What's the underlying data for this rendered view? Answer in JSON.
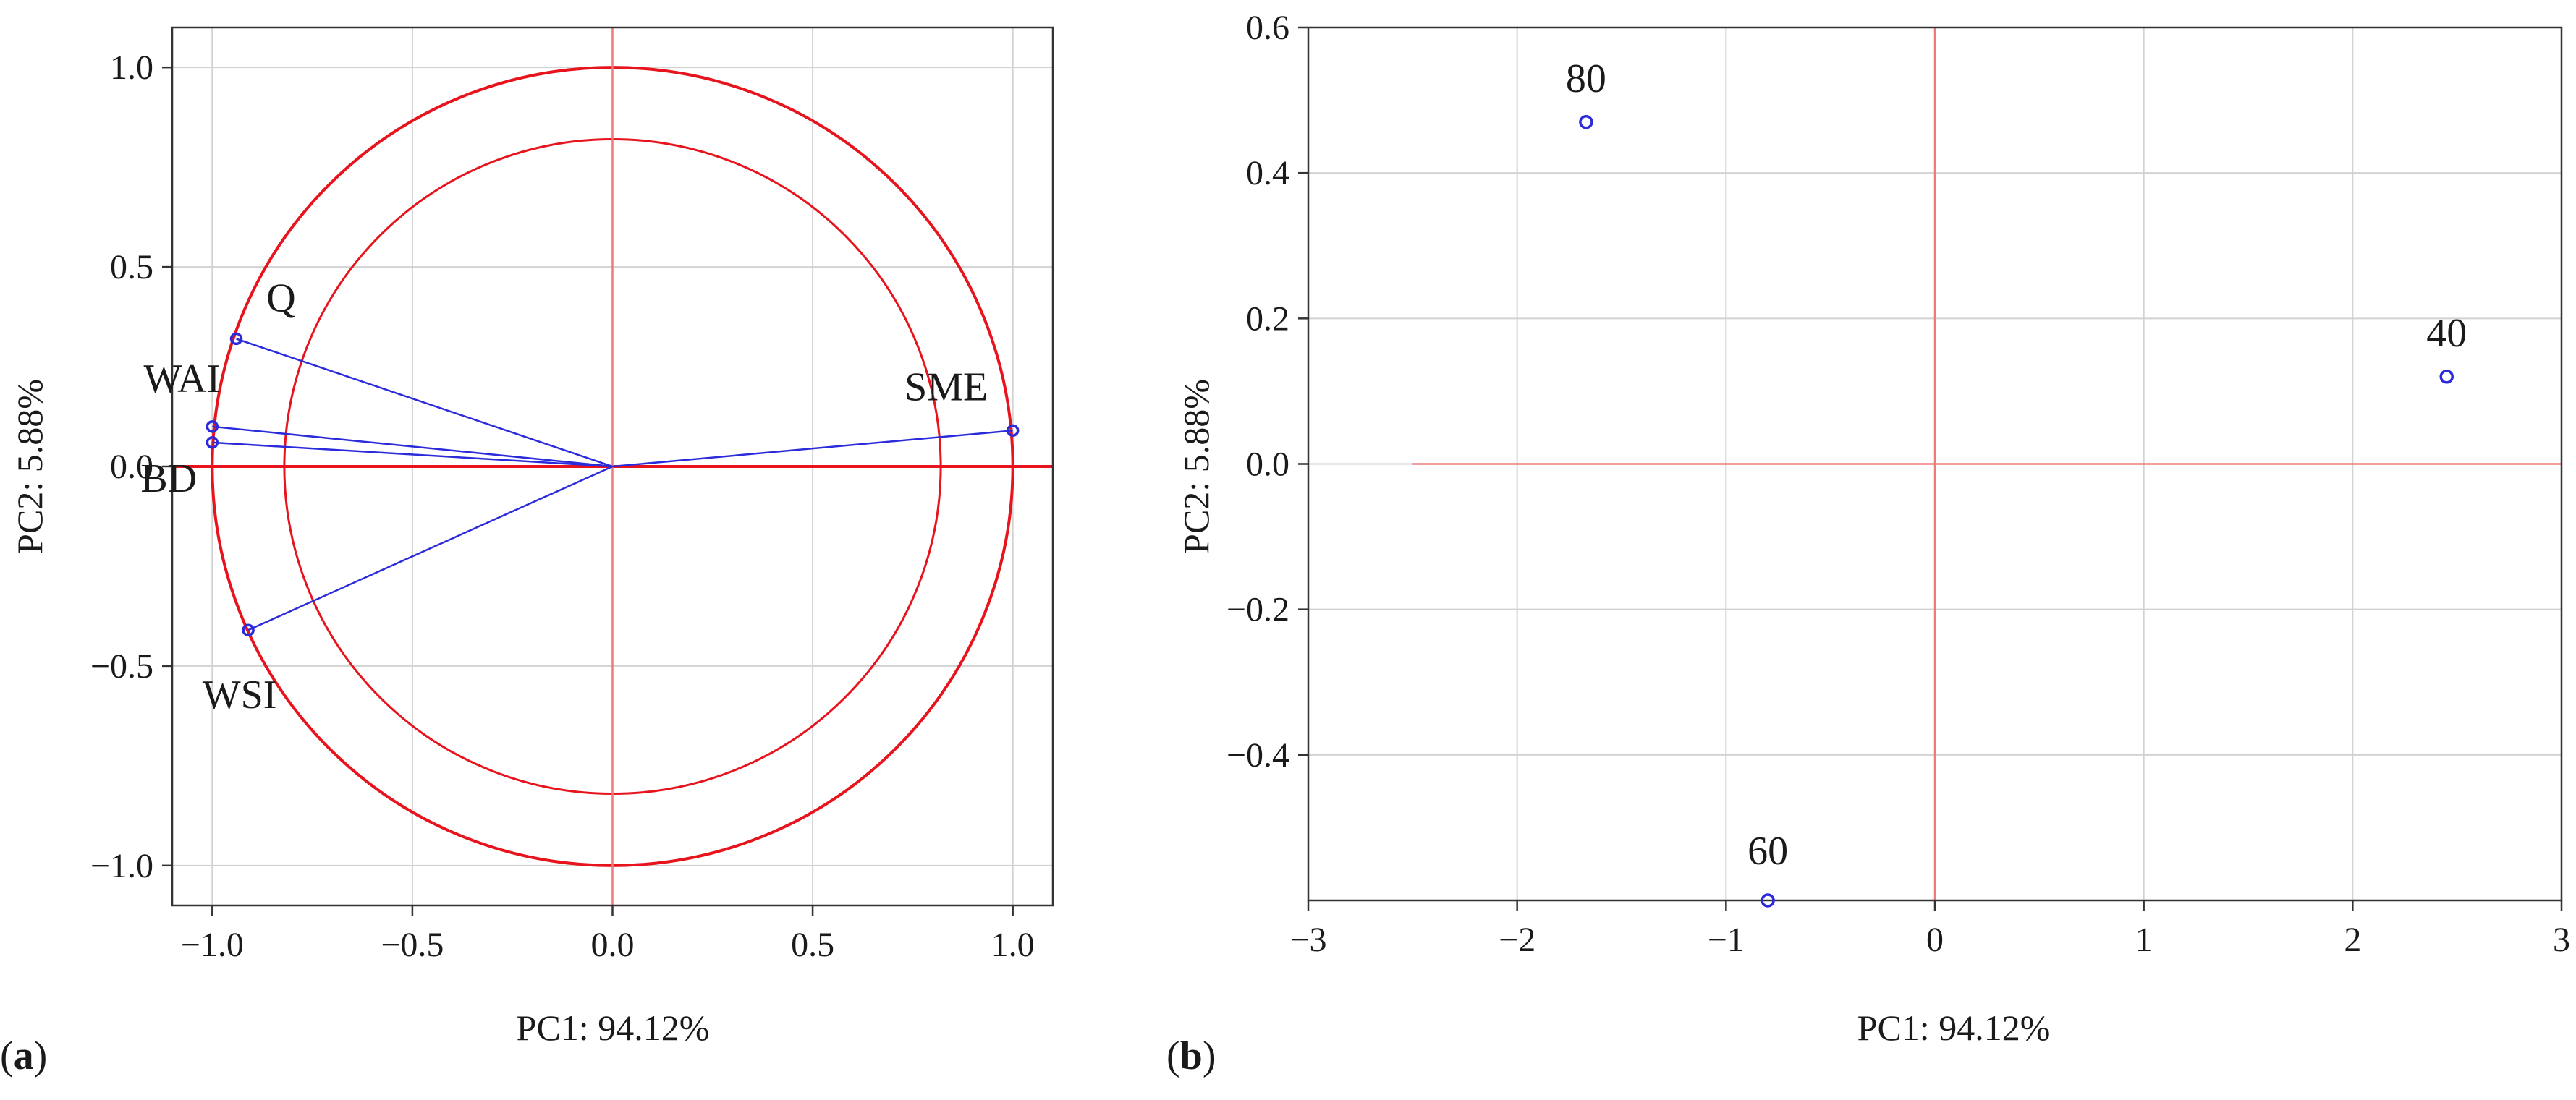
{
  "chart_data": [
    {
      "panel": "(a)",
      "type": "scatter",
      "subtype": "correlation-circle",
      "xlabel": "PC1: 94.12%",
      "ylabel": "PC2: 5.88%",
      "xlim": [
        -1.1,
        1.1
      ],
      "ylim": [
        -1.1,
        1.1
      ],
      "x_ticks": [
        -1.0,
        -0.5,
        0.0,
        0.5,
        1.0
      ],
      "x_tick_labels": [
        "−1.0",
        "−0.5",
        "0.0",
        "0.5",
        "1.0"
      ],
      "y_ticks": [
        -1.0,
        -0.5,
        0.0,
        0.5,
        1.0
      ],
      "y_tick_labels": [
        "−1.0",
        "−0.5",
        "0.0",
        "0.5",
        "1.0"
      ],
      "grid": true,
      "circles": [
        {
          "name": "outer",
          "radius": 1.0,
          "color": "#e8141d"
        },
        {
          "name": "inner",
          "radius": 0.82,
          "color": "#e8141d"
        }
      ],
      "axis_line_color": "#e8141d",
      "vector_color": "#2b2bdc",
      "points": [
        {
          "label": "Q",
          "x": -0.94,
          "y": 0.32
        },
        {
          "label": "WAI",
          "x": -1.0,
          "y": 0.1
        },
        {
          "label": "BD",
          "x": -1.0,
          "y": 0.06
        },
        {
          "label": "WSI",
          "x": -0.91,
          "y": -0.41
        },
        {
          "label": "SME",
          "x": 1.0,
          "y": 0.09
        }
      ]
    },
    {
      "panel": "(b)",
      "type": "scatter",
      "xlabel": "PC1: 94.12%",
      "ylabel": "PC2: 5.88%",
      "xlim": [
        -3,
        3
      ],
      "ylim": [
        -0.6,
        0.6
      ],
      "x_ticks": [
        -3,
        -2,
        -1,
        0,
        1,
        2,
        3
      ],
      "x_tick_labels": [
        "−3",
        "−2",
        "−1",
        "0",
        "1",
        "2",
        "3"
      ],
      "y_ticks": [
        -0.4,
        -0.2,
        0.0,
        0.2,
        0.4,
        0.6
      ],
      "y_tick_labels": [
        "−0.4",
        "−0.2",
        "0.0",
        "0.2",
        "0.4",
        "0.6"
      ],
      "grid": true,
      "axis_line_color": "#f07a7a",
      "point_color": "#2b2bdc",
      "points": [
        {
          "label": "80",
          "x": -1.67,
          "y": 0.47
        },
        {
          "label": "40",
          "x": 2.45,
          "y": 0.12
        },
        {
          "label": "60",
          "x": -0.8,
          "y": -0.6
        }
      ]
    }
  ]
}
